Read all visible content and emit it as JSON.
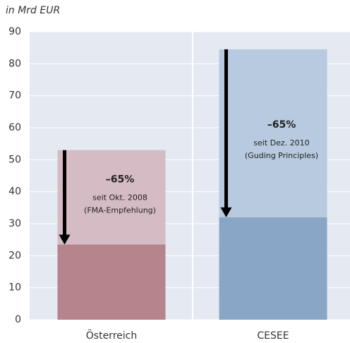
{
  "chart_data": {
    "type": "stacked_bar",
    "y_axis_label": "in Mrd EUR",
    "categories": [
      "Österreich",
      "CESEE"
    ],
    "series": [
      {
        "colors": [
          "#b5848d",
          "#89a6c6"
        ],
        "values": [
          23.5,
          32
        ]
      },
      {
        "colors": [
          "#d5bbc3",
          "#b8cadf"
        ],
        "values": [
          29.5,
          52.5
        ]
      }
    ],
    "annotations": [
      [
        "–65%",
        "seit Okt. 2008",
        "(FMA-Empfehlung)"
      ],
      [
        "–65%",
        "seit Dez. 2010",
        "(Guding Principles)"
      ]
    ],
    "ylim": [
      0,
      90
    ],
    "yticks": [
      0,
      10,
      20,
      30,
      40,
      50,
      60,
      70,
      80,
      90
    ],
    "grid": true
  }
}
